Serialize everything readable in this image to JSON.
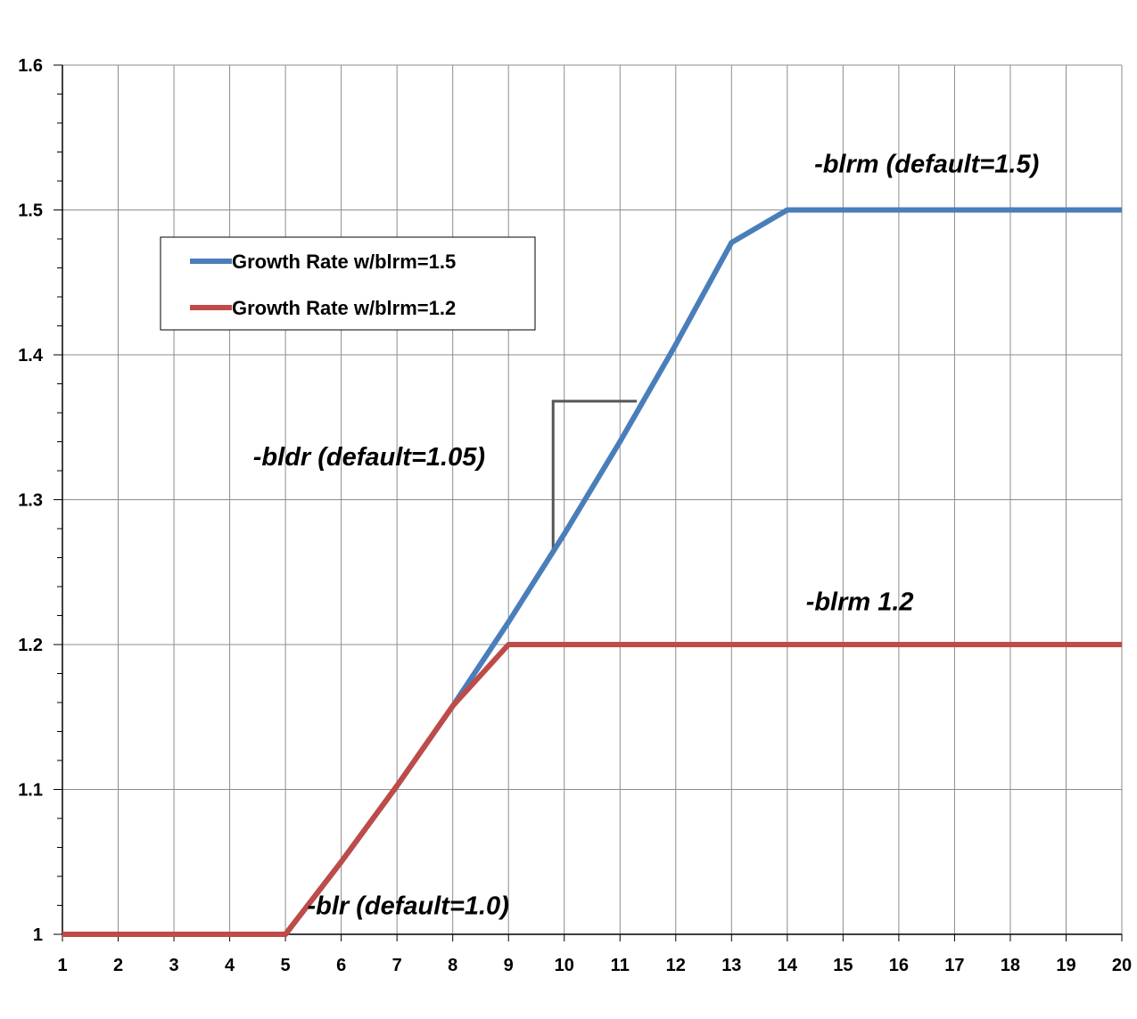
{
  "chart_data": {
    "type": "line",
    "title": "",
    "xlabel": "",
    "ylabel": "",
    "x": [
      1,
      2,
      3,
      4,
      5,
      6,
      7,
      8,
      9,
      10,
      11,
      12,
      13,
      14,
      15,
      16,
      17,
      18,
      19,
      20
    ],
    "xlim": [
      1,
      20
    ],
    "ylim": [
      1,
      1.6
    ],
    "y_ticks": [
      "1",
      "1.1",
      "1.2",
      "1.3",
      "1.4",
      "1.5",
      "1.6"
    ],
    "grid": true,
    "legend_position": "upper-left",
    "series": [
      {
        "name": "Growth Rate w/blrm=1.5",
        "color": "#4a7ebb",
        "values": [
          1,
          1,
          1,
          1,
          1,
          1.05,
          1.1025,
          1.1576,
          1.2155,
          1.2763,
          1.3401,
          1.4071,
          1.4775,
          1.5,
          1.5,
          1.5,
          1.5,
          1.5,
          1.5,
          1.5
        ]
      },
      {
        "name": "Growth Rate w/blrm=1.2",
        "color": "#be4b48",
        "values": [
          1,
          1,
          1,
          1,
          1,
          1.05,
          1.1025,
          1.1576,
          1.2,
          1.2,
          1.2,
          1.2,
          1.2,
          1.2,
          1.2,
          1.2,
          1.2,
          1.2,
          1.2,
          1.2
        ]
      }
    ],
    "annotations": [
      {
        "text": "-blrm (default=1.5)",
        "x": 16.5,
        "y": 1.532
      },
      {
        "text": "-blrm 1.2",
        "x": 15.3,
        "y": 1.23
      },
      {
        "text": "-bldr (default=1.05)",
        "x": 6.5,
        "y": 1.33
      },
      {
        "text": "-blr (default=1.0)",
        "x": 7.2,
        "y": 1.02
      }
    ],
    "slope_marker": {
      "from": [
        9.8,
        1.262
      ],
      "corner": [
        9.8,
        1.368
      ],
      "to": [
        11.3,
        1.368
      ],
      "color": "#555555"
    }
  }
}
